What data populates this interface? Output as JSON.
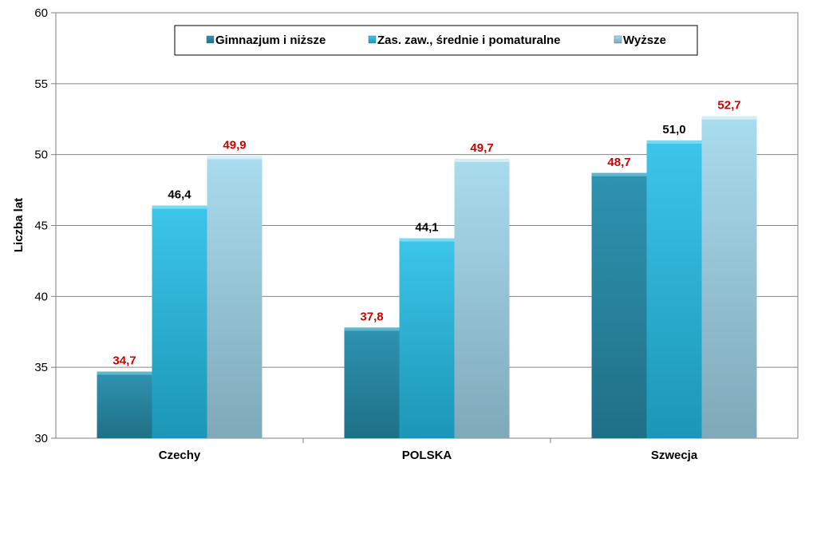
{
  "chart_data": {
    "type": "bar",
    "categories": [
      "Czechy",
      "POLSKA",
      "Szwecja"
    ],
    "series": [
      {
        "name": "Gimnazjum i niższe",
        "values": [
          34.7,
          37.8,
          48.7
        ],
        "color": "#2f8fad"
      },
      {
        "name": "Zas. zaw., średnie i pomaturalne",
        "values": [
          46.4,
          44.1,
          51.0
        ],
        "color": "#35c0e6"
      },
      {
        "name": "Wyższe",
        "values": [
          49.9,
          49.7,
          52.7
        ],
        "color": "#a8d8ea"
      }
    ],
    "data_labels": [
      [
        "34,7",
        "37,8",
        "48,7"
      ],
      [
        "46,4",
        "44,1",
        "51,0"
      ],
      [
        "49,9",
        "49,7",
        "52,7"
      ]
    ],
    "data_label_colors": [
      [
        "#cc0000",
        "#cc0000",
        "#cc0000"
      ],
      [
        "#000000",
        "#000000",
        "#000000"
      ],
      [
        "#cc0000",
        "#cc0000",
        "#cc0000"
      ]
    ],
    "ylabel": "Liczba lat",
    "ylim": [
      30,
      60
    ],
    "yticks": [
      30,
      35,
      40,
      45,
      50,
      55,
      60
    ],
    "grid": true,
    "legend_position": "top-center"
  }
}
